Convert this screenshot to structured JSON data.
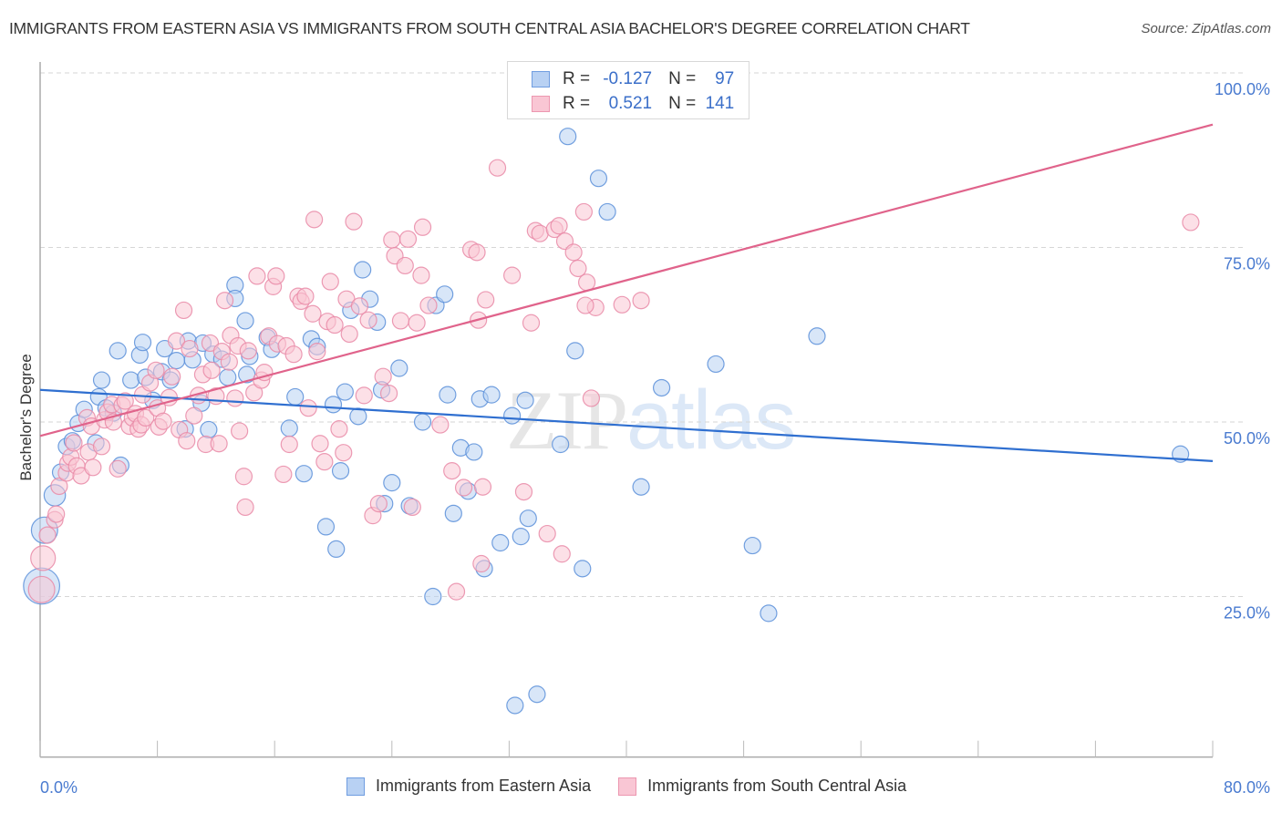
{
  "header": {
    "title": "IMMIGRANTS FROM EASTERN ASIA VS IMMIGRANTS FROM SOUTH CENTRAL ASIA BACHELOR'S DEGREE CORRELATION CHART",
    "source": "Source: ZipAtlas.com"
  },
  "watermark": {
    "zip": "ZIP",
    "atlas": "atlas"
  },
  "legend": {
    "rows": [
      {
        "r_label": "R =",
        "r_value": "-0.127",
        "n_label": "N =",
        "n_value": "97"
      },
      {
        "r_label": "R =",
        "r_value": "0.521",
        "n_label": "N =",
        "n_value": "141"
      }
    ]
  },
  "colors": {
    "series_a_fill": "#b8d1f3",
    "series_a_stroke": "#5b8fd9",
    "series_a_line": "#2f6fd0",
    "series_b_fill": "#f9c6d4",
    "series_b_stroke": "#e98aa7",
    "series_b_line": "#e0638b"
  },
  "chart_data": {
    "type": "scatter",
    "title": "IMMIGRANTS FROM EASTERN ASIA VS IMMIGRANTS FROM SOUTH CENTRAL ASIA BACHELOR'S DEGREE CORRELATION CHART",
    "xlabel": "",
    "ylabel": "Bachelor's Degree",
    "xlim": [
      0,
      80
    ],
    "ylim": [
      2,
      102
    ],
    "x_tick_labels": [
      "0.0%",
      "80.0%"
    ],
    "y_ticks": [
      25,
      50,
      75,
      100
    ],
    "y_tick_labels": [
      "25.0%",
      "50.0%",
      "75.0%",
      "100.0%"
    ],
    "grid": true,
    "legend_position": "bottom",
    "series": [
      {
        "name": "Immigrants from Eastern Asia",
        "R": -0.127,
        "N": 97,
        "trend": {
          "x": [
            0,
            80
          ],
          "y": [
            54.6,
            44.4
          ]
        },
        "points": [
          [
            0.1,
            26.5,
            2.2
          ],
          [
            0.3,
            34.5,
            1.6
          ],
          [
            1.0,
            39.5,
            1.3
          ],
          [
            1.4,
            42.8
          ],
          [
            1.8,
            46.5
          ],
          [
            2.2,
            47.3
          ],
          [
            2.6,
            49.8
          ],
          [
            3.0,
            51.8
          ],
          [
            3.8,
            47.0
          ],
          [
            4.0,
            53.6
          ],
          [
            4.2,
            56.0
          ],
          [
            4.5,
            52.0
          ],
          [
            5.0,
            51.3
          ],
          [
            5.5,
            43.8
          ],
          [
            5.3,
            60.2
          ],
          [
            6.2,
            56.0
          ],
          [
            6.8,
            59.6
          ],
          [
            7.0,
            61.4
          ],
          [
            7.2,
            56.4
          ],
          [
            7.7,
            53.1
          ],
          [
            8.3,
            57.2
          ],
          [
            8.5,
            60.5
          ],
          [
            8.9,
            56.0
          ],
          [
            9.3,
            58.8
          ],
          [
            9.9,
            49.0
          ],
          [
            10.1,
            61.6
          ],
          [
            10.4,
            58.9
          ],
          [
            11.0,
            52.7
          ],
          [
            11.1,
            61.3
          ],
          [
            11.5,
            48.9
          ],
          [
            11.8,
            59.7
          ],
          [
            12.4,
            59.0
          ],
          [
            13.3,
            69.6
          ],
          [
            13.3,
            67.7
          ],
          [
            12.8,
            56.4
          ],
          [
            14.0,
            64.5
          ],
          [
            14.1,
            56.8
          ],
          [
            14.3,
            59.4
          ],
          [
            15.5,
            62.1
          ],
          [
            15.8,
            60.4
          ],
          [
            17.0,
            49.1
          ],
          [
            17.4,
            53.6
          ],
          [
            18.0,
            42.6
          ],
          [
            18.5,
            61.9
          ],
          [
            18.9,
            60.8
          ],
          [
            19.5,
            35.0
          ],
          [
            20.0,
            52.5
          ],
          [
            20.2,
            31.8
          ],
          [
            20.5,
            43.0
          ],
          [
            20.8,
            54.3
          ],
          [
            21.2,
            66.0
          ],
          [
            21.7,
            50.8
          ],
          [
            22.0,
            71.8
          ],
          [
            22.5,
            67.6
          ],
          [
            23.0,
            64.3
          ],
          [
            23.3,
            54.6
          ],
          [
            23.5,
            38.3
          ],
          [
            24.0,
            41.3
          ],
          [
            24.5,
            57.7
          ],
          [
            25.2,
            38.0
          ],
          [
            26.1,
            50.0
          ],
          [
            27.0,
            66.7
          ],
          [
            27.6,
            68.3
          ],
          [
            26.8,
            25.0
          ],
          [
            27.8,
            53.9
          ],
          [
            28.2,
            36.9
          ],
          [
            28.7,
            46.3
          ],
          [
            29.2,
            40.1
          ],
          [
            29.6,
            45.7
          ],
          [
            30.0,
            53.3
          ],
          [
            30.3,
            29.0
          ],
          [
            30.8,
            53.9
          ],
          [
            31.4,
            32.7
          ],
          [
            32.2,
            50.9
          ],
          [
            32.4,
            9.4
          ],
          [
            32.8,
            33.6
          ],
          [
            33.1,
            53.1
          ],
          [
            33.3,
            36.2
          ],
          [
            33.9,
            11.0
          ],
          [
            35.5,
            46.8
          ],
          [
            36.0,
            90.9
          ],
          [
            36.5,
            60.2
          ],
          [
            37.0,
            29.0
          ],
          [
            38.1,
            84.9
          ],
          [
            38.7,
            80.1
          ],
          [
            41.0,
            40.7
          ],
          [
            42.4,
            54.9
          ],
          [
            46.1,
            58.3
          ],
          [
            48.6,
            32.3
          ],
          [
            49.7,
            22.6
          ],
          [
            53.0,
            62.3
          ],
          [
            77.8,
            45.4
          ]
        ]
      },
      {
        "name": "Immigrants from South Central Asia",
        "R": 0.521,
        "N": 141,
        "trend": {
          "x": [
            0,
            80
          ],
          "y": [
            48.0,
            92.6
          ]
        },
        "points": [
          [
            0.1,
            26.0,
            1.6
          ],
          [
            0.2,
            30.5,
            1.5
          ],
          [
            0.5,
            33.8
          ],
          [
            1.0,
            36.0
          ],
          [
            1.1,
            36.8
          ],
          [
            1.3,
            40.8
          ],
          [
            1.8,
            42.7
          ],
          [
            1.9,
            44.1
          ],
          [
            2.1,
            45.0
          ],
          [
            2.3,
            47.0
          ],
          [
            2.5,
            43.7
          ],
          [
            2.8,
            42.3
          ],
          [
            3.3,
            45.7
          ],
          [
            3.2,
            50.6
          ],
          [
            3.5,
            49.4
          ],
          [
            3.6,
            43.5
          ],
          [
            4.2,
            46.5
          ],
          [
            4.4,
            50.3
          ],
          [
            4.6,
            51.4
          ],
          [
            4.9,
            52.5
          ],
          [
            5.0,
            50.0
          ],
          [
            5.3,
            43.3
          ],
          [
            5.6,
            52.4
          ],
          [
            5.8,
            53.0
          ],
          [
            6.1,
            49.4
          ],
          [
            6.3,
            50.6
          ],
          [
            6.5,
            51.2
          ],
          [
            6.7,
            49.0
          ],
          [
            6.9,
            49.6
          ],
          [
            7.0,
            53.9
          ],
          [
            7.2,
            50.6
          ],
          [
            7.5,
            55.6
          ],
          [
            7.9,
            57.4
          ],
          [
            8.0,
            52.0
          ],
          [
            8.1,
            49.3
          ],
          [
            8.4,
            50.1
          ],
          [
            8.8,
            53.5
          ],
          [
            9.0,
            56.5
          ],
          [
            9.3,
            61.6
          ],
          [
            9.5,
            48.9
          ],
          [
            9.8,
            66.0
          ],
          [
            10.0,
            47.3
          ],
          [
            10.2,
            60.5
          ],
          [
            10.5,
            50.9
          ],
          [
            10.8,
            53.8
          ],
          [
            11.1,
            56.8
          ],
          [
            11.3,
            46.8
          ],
          [
            11.6,
            61.3
          ],
          [
            11.7,
            57.4
          ],
          [
            12.0,
            53.7
          ],
          [
            12.2,
            46.9
          ],
          [
            12.4,
            60.1
          ],
          [
            12.6,
            67.4
          ],
          [
            12.9,
            58.6
          ],
          [
            13.0,
            62.4
          ],
          [
            13.3,
            53.4
          ],
          [
            13.5,
            60.9
          ],
          [
            13.6,
            48.7
          ],
          [
            13.9,
            42.2
          ],
          [
            14.0,
            37.8
          ],
          [
            14.2,
            60.2
          ],
          [
            14.6,
            54.2
          ],
          [
            14.8,
            70.9
          ],
          [
            15.1,
            56.0
          ],
          [
            15.3,
            57.1
          ],
          [
            15.6,
            62.3
          ],
          [
            15.9,
            69.4
          ],
          [
            16.1,
            70.9
          ],
          [
            16.2,
            61.2
          ],
          [
            16.6,
            42.5
          ],
          [
            16.8,
            60.9
          ],
          [
            17.0,
            46.8
          ],
          [
            17.3,
            59.7
          ],
          [
            17.6,
            68.0
          ],
          [
            17.8,
            67.3
          ],
          [
            18.1,
            68.0
          ],
          [
            18.3,
            52.0
          ],
          [
            18.6,
            65.5
          ],
          [
            18.7,
            79.0
          ],
          [
            18.9,
            60.1
          ],
          [
            19.1,
            46.9
          ],
          [
            19.4,
            44.3
          ],
          [
            19.6,
            64.4
          ],
          [
            19.8,
            70.1
          ],
          [
            20.1,
            63.9
          ],
          [
            20.4,
            49.0
          ],
          [
            20.7,
            45.6
          ],
          [
            20.9,
            67.6
          ],
          [
            21.1,
            62.6
          ],
          [
            21.4,
            78.7
          ],
          [
            21.8,
            66.6
          ],
          [
            22.1,
            53.8
          ],
          [
            22.4,
            64.6
          ],
          [
            22.7,
            36.6
          ],
          [
            23.1,
            38.3
          ],
          [
            23.4,
            56.5
          ],
          [
            23.8,
            54.1
          ],
          [
            24.0,
            76.1
          ],
          [
            24.2,
            73.8
          ],
          [
            24.6,
            64.5
          ],
          [
            24.9,
            72.4
          ],
          [
            25.1,
            76.2
          ],
          [
            25.4,
            37.8
          ],
          [
            25.7,
            64.2
          ],
          [
            26.0,
            71.0
          ],
          [
            26.1,
            77.9
          ],
          [
            26.5,
            66.7
          ],
          [
            27.3,
            49.6
          ],
          [
            28.1,
            43.0
          ],
          [
            28.9,
            40.6
          ],
          [
            29.4,
            74.7
          ],
          [
            29.8,
            74.3
          ],
          [
            29.9,
            64.6
          ],
          [
            30.4,
            67.5
          ],
          [
            30.1,
            29.7
          ],
          [
            30.2,
            40.7
          ],
          [
            28.4,
            25.7
          ],
          [
            31.2,
            86.4
          ],
          [
            32.2,
            71.0
          ],
          [
            33.0,
            40.0
          ],
          [
            33.5,
            64.2
          ],
          [
            33.8,
            77.4
          ],
          [
            34.1,
            77.0
          ],
          [
            34.6,
            34.0
          ],
          [
            35.1,
            77.6
          ],
          [
            35.4,
            78.1
          ],
          [
            35.8,
            75.9
          ],
          [
            35.6,
            31.1
          ],
          [
            36.4,
            74.3
          ],
          [
            36.7,
            72.0
          ],
          [
            37.1,
            80.1
          ],
          [
            37.3,
            70.0
          ],
          [
            37.6,
            53.4
          ],
          [
            37.9,
            66.4
          ],
          [
            37.2,
            66.7
          ],
          [
            39.7,
            66.8
          ],
          [
            41.0,
            67.4
          ],
          [
            78.5,
            78.6
          ]
        ]
      }
    ]
  },
  "bottom_legend": {
    "items": [
      {
        "label": "Immigrants from Eastern Asia"
      },
      {
        "label": "Immigrants from South Central Asia"
      }
    ]
  }
}
